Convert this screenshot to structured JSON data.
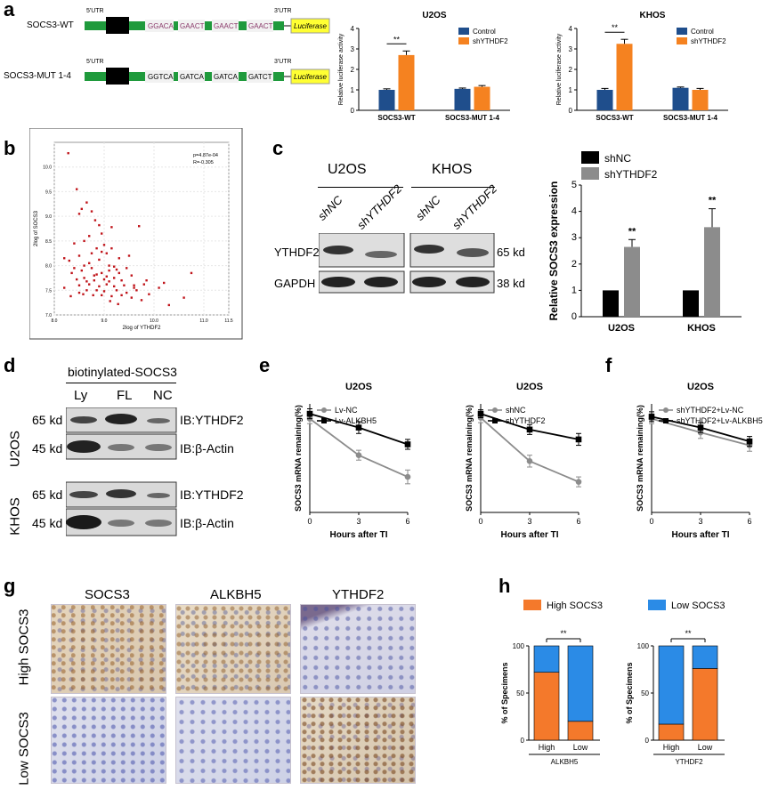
{
  "panels": {
    "a": "a",
    "b": "b",
    "c": "c",
    "d": "d",
    "e": "e",
    "f": "f",
    "g": "g",
    "h": "h"
  },
  "colors": {
    "blue": "#1f4e8c",
    "orange": "#f58220",
    "dark": "#000000",
    "grey": "#8c8c8c",
    "sky": "#2b8be6",
    "ihc_orange": "#f4792b",
    "red_dot": "#c0151b",
    "utr_green": "#1f9a3c",
    "luciferase_yellow": "#ffff33"
  },
  "construct": {
    "utr5": "5'UTR",
    "utr3": "3'UTR",
    "wt": {
      "label": "SOCS3-WT",
      "sites": [
        "GGACA",
        "GAACT",
        "GAACT",
        "GAACT"
      ]
    },
    "mut": {
      "label": "SOCS3-MUT 1-4",
      "sites": [
        "GGTCA",
        "GATCA",
        "GATCA",
        "GATCT"
      ]
    },
    "reporter": "Luciferase"
  },
  "chart_data": [
    {
      "id": "a-U2OS",
      "type": "bar",
      "title": "U2OS",
      "ylabel": "Relative luciferase activity",
      "ylim": [
        0,
        4
      ],
      "yticks": [
        0,
        1,
        2,
        3,
        4
      ],
      "categories": [
        "SOCS3-WT",
        "SOCS3-MUT 1-4"
      ],
      "series": [
        {
          "name": "Control",
          "values": [
            1.0,
            1.05
          ],
          "errors": [
            0.05,
            0.04
          ]
        },
        {
          "name": "shYTHDF2",
          "values": [
            2.7,
            1.15
          ],
          "errors": [
            0.2,
            0.06
          ]
        }
      ],
      "significance": [
        "**"
      ],
      "legend": "top-right"
    },
    {
      "id": "a-KHOS",
      "type": "bar",
      "title": "KHOS",
      "ylabel": "Relative luciferase activity",
      "ylim": [
        0,
        4
      ],
      "yticks": [
        0,
        1,
        2,
        3,
        4
      ],
      "categories": [
        "SOCS3-WT",
        "SOCS3-MUT 1-4"
      ],
      "series": [
        {
          "name": "Control",
          "values": [
            1.0,
            1.1
          ],
          "errors": [
            0.07,
            0.04
          ]
        },
        {
          "name": "shYTHDF2",
          "values": [
            3.25,
            1.0
          ],
          "errors": [
            0.22,
            0.07
          ]
        }
      ],
      "significance": [
        "**"
      ],
      "legend": "top-right"
    },
    {
      "id": "b-scatter",
      "type": "scatter",
      "xlabel": "2log of YTHDF2",
      "ylabel": "2log of SOCS3",
      "xticks": [
        "8.0",
        "9.0",
        "10.0",
        "11.0",
        "11.5"
      ],
      "yticks": [
        "7.0",
        "7.5",
        "8.0",
        "8.5",
        "9.0",
        "9.5",
        "10.0"
      ],
      "annotations": [
        "p=4.87e-04",
        "R=-0.305"
      ],
      "points": [
        [
          8.28,
          10.28
        ],
        [
          8.45,
          9.55
        ],
        [
          8.65,
          9.28
        ],
        [
          8.5,
          9.05
        ],
        [
          8.55,
          9.15
        ],
        [
          8.75,
          9.1
        ],
        [
          8.9,
          8.82
        ],
        [
          8.7,
          8.6
        ],
        [
          8.82,
          8.92
        ],
        [
          8.95,
          8.65
        ],
        [
          9.15,
          8.78
        ],
        [
          9.7,
          8.8
        ],
        [
          8.4,
          8.45
        ],
        [
          8.6,
          8.5
        ],
        [
          8.85,
          8.35
        ],
        [
          9.0,
          8.42
        ],
        [
          9.05,
          8.25
        ],
        [
          9.3,
          8.15
        ],
        [
          9.5,
          8.2
        ],
        [
          8.3,
          8.1
        ],
        [
          8.5,
          8.2
        ],
        [
          8.7,
          8.05
        ],
        [
          8.9,
          8.12
        ],
        [
          9.1,
          8.0
        ],
        [
          9.2,
          7.98
        ],
        [
          8.35,
          7.85
        ],
        [
          8.55,
          7.9
        ],
        [
          8.75,
          7.95
        ],
        [
          8.95,
          7.85
        ],
        [
          9.1,
          7.9
        ],
        [
          9.3,
          7.85
        ],
        [
          8.45,
          7.72
        ],
        [
          8.6,
          7.75
        ],
        [
          8.8,
          7.7
        ],
        [
          9.0,
          7.72
        ],
        [
          9.2,
          7.75
        ],
        [
          9.35,
          7.7
        ],
        [
          9.55,
          7.8
        ],
        [
          8.5,
          7.6
        ],
        [
          8.7,
          7.62
        ],
        [
          8.9,
          7.58
        ],
        [
          9.05,
          7.62
        ],
        [
          9.2,
          7.58
        ],
        [
          9.4,
          7.6
        ],
        [
          9.6,
          7.6
        ],
        [
          9.8,
          7.62
        ],
        [
          8.65,
          7.5
        ],
        [
          8.85,
          7.5
        ],
        [
          9.0,
          7.48
        ],
        [
          9.25,
          7.5
        ],
        [
          9.45,
          7.45
        ],
        [
          9.65,
          7.5
        ],
        [
          10.1,
          7.55
        ],
        [
          8.95,
          7.4
        ],
        [
          9.15,
          7.38
        ],
        [
          9.35,
          7.4
        ],
        [
          9.55,
          7.35
        ],
        [
          9.75,
          7.3
        ],
        [
          9.9,
          7.42
        ],
        [
          10.3,
          7.2
        ],
        [
          10.6,
          7.35
        ],
        [
          8.4,
          7.95
        ],
        [
          8.6,
          8.0
        ],
        [
          8.8,
          7.8
        ],
        [
          9.05,
          7.78
        ],
        [
          9.25,
          7.92
        ],
        [
          9.45,
          7.95
        ],
        [
          8.75,
          8.25
        ],
        [
          8.95,
          8.28
        ],
        [
          9.15,
          8.35
        ],
        [
          8.2,
          8.15
        ],
        [
          8.2,
          7.55
        ],
        [
          8.33,
          7.38
        ],
        [
          8.58,
          7.42
        ],
        [
          8.78,
          7.4
        ],
        [
          9.12,
          7.28
        ],
        [
          9.28,
          7.22
        ],
        [
          9.6,
          7.55
        ],
        [
          9.85,
          7.7
        ],
        [
          10.2,
          7.65
        ],
        [
          10.75,
          7.85
        ],
        [
          9.1,
          7.68
        ],
        [
          8.65,
          7.68
        ],
        [
          8.85,
          7.82
        ],
        [
          8.5,
          7.45
        ]
      ]
    },
    {
      "id": "c-expression",
      "type": "bar",
      "ylabel": "Relative SOCS3 expression",
      "ylim": [
        0,
        5
      ],
      "yticks": [
        0,
        1,
        2,
        3,
        4,
        5
      ],
      "categories": [
        "U2OS",
        "KHOS"
      ],
      "series": [
        {
          "name": "shNC",
          "values": [
            1.0,
            1.0
          ],
          "errors": [
            0,
            0
          ]
        },
        {
          "name": "shYTHDF2",
          "values": [
            2.65,
            3.4
          ],
          "errors": [
            0.28,
            0.7
          ]
        }
      ],
      "significance": [
        "**",
        "**"
      ],
      "legend": "top-left"
    },
    {
      "id": "e-left",
      "type": "line",
      "title": "U2OS",
      "xlabel": "Hours after TI",
      "ylabel": "SOCS3 mRNA remaining(%)",
      "x": [
        0,
        3,
        6
      ],
      "xticks": [
        0,
        3,
        6
      ],
      "ylim": [
        0,
        1.1
      ],
      "series": [
        {
          "name": "Lv-NC",
          "values": [
            0.95,
            0.58,
            0.36
          ],
          "errors": [
            0.05,
            0.05,
            0.07
          ]
        },
        {
          "name": "Lv-ALKBH5",
          "values": [
            1.0,
            0.86,
            0.69
          ],
          "errors": [
            0.05,
            0.06,
            0.05
          ]
        }
      ]
    },
    {
      "id": "e-right",
      "type": "line",
      "title": "U2OS",
      "xlabel": "Hours after TI",
      "ylabel": "SOCS3 mRNA remaining(%)",
      "x": [
        0,
        3,
        6
      ],
      "xticks": [
        0,
        3,
        6
      ],
      "ylim": [
        0,
        1.1
      ],
      "series": [
        {
          "name": "shNC",
          "values": [
            0.96,
            0.52,
            0.31
          ],
          "errors": [
            0.05,
            0.06,
            0.05
          ]
        },
        {
          "name": "shYTHDF2",
          "values": [
            1.0,
            0.84,
            0.74
          ],
          "errors": [
            0.04,
            0.05,
            0.06
          ]
        }
      ]
    },
    {
      "id": "f",
      "type": "line",
      "title": "U2OS",
      "xlabel": "Hours after TI",
      "ylabel": "SOCS3 mRNA remaining(%)",
      "x": [
        0,
        3,
        6
      ],
      "xticks": [
        0,
        3,
        6
      ],
      "ylim": [
        0,
        1.1
      ],
      "series": [
        {
          "name": "shYTHDF2+Lv-NC",
          "values": [
            0.95,
            0.81,
            0.68
          ],
          "errors": [
            0.05,
            0.06,
            0.06
          ]
        },
        {
          "name": "shYTHDF2+Lv-ALKBH5",
          "values": [
            0.97,
            0.86,
            0.72
          ],
          "errors": [
            0.05,
            0.05,
            0.05
          ]
        }
      ]
    },
    {
      "id": "h-left",
      "type": "bar",
      "stacked": true,
      "xlabel": "ALKBH5",
      "ylabel": "% of Specimens",
      "ylim": [
        0,
        100
      ],
      "yticks": [
        0,
        50,
        100
      ],
      "categories": [
        "High",
        "Low"
      ],
      "series": [
        {
          "name": "High SOCS3",
          "values": [
            72,
            20
          ]
        },
        {
          "name": "Low SOCS3",
          "values": [
            28,
            80
          ]
        }
      ],
      "significance": [
        "**"
      ],
      "legend": "top-left"
    },
    {
      "id": "h-right",
      "type": "bar",
      "stacked": true,
      "xlabel": "YTHDF2",
      "ylabel": "% of Specimens",
      "ylim": [
        0,
        100
      ],
      "yticks": [
        0,
        50,
        100
      ],
      "categories": [
        "High",
        "Low"
      ],
      "series": [
        {
          "name": "High SOCS3",
          "values": [
            17,
            76
          ]
        },
        {
          "name": "Low SOCS3",
          "values": [
            83,
            24
          ]
        }
      ],
      "significance": [
        "**"
      ],
      "legend": "top-left"
    }
  ],
  "blot_c": {
    "cell_lines": [
      "U2OS",
      "KHOS"
    ],
    "lanes": [
      "shNC",
      "shYTHDF2",
      "shNC",
      "shYTHDF2"
    ],
    "rows": [
      "YTHDF2",
      "GAPDH"
    ],
    "sizes": [
      "65 kd",
      "38 kd"
    ]
  },
  "blot_d": {
    "header": "biotinylated-SOCS3",
    "lanes": [
      "Ly",
      "FL",
      "NC"
    ],
    "groups": [
      "U2OS",
      "KHOS"
    ],
    "sizes": [
      "65 kd",
      "45 kd",
      "65 kd",
      "45 kd"
    ],
    "antibodies": [
      "IB:YTHDF2",
      "IB:β-Actin",
      "IB:YTHDF2",
      "IB:β-Actin"
    ]
  },
  "ihc": {
    "columns": [
      "SOCS3",
      "ALKBH5",
      "YTHDF2"
    ],
    "rows": [
      "High SOCS3",
      "Low SOCS3"
    ]
  }
}
